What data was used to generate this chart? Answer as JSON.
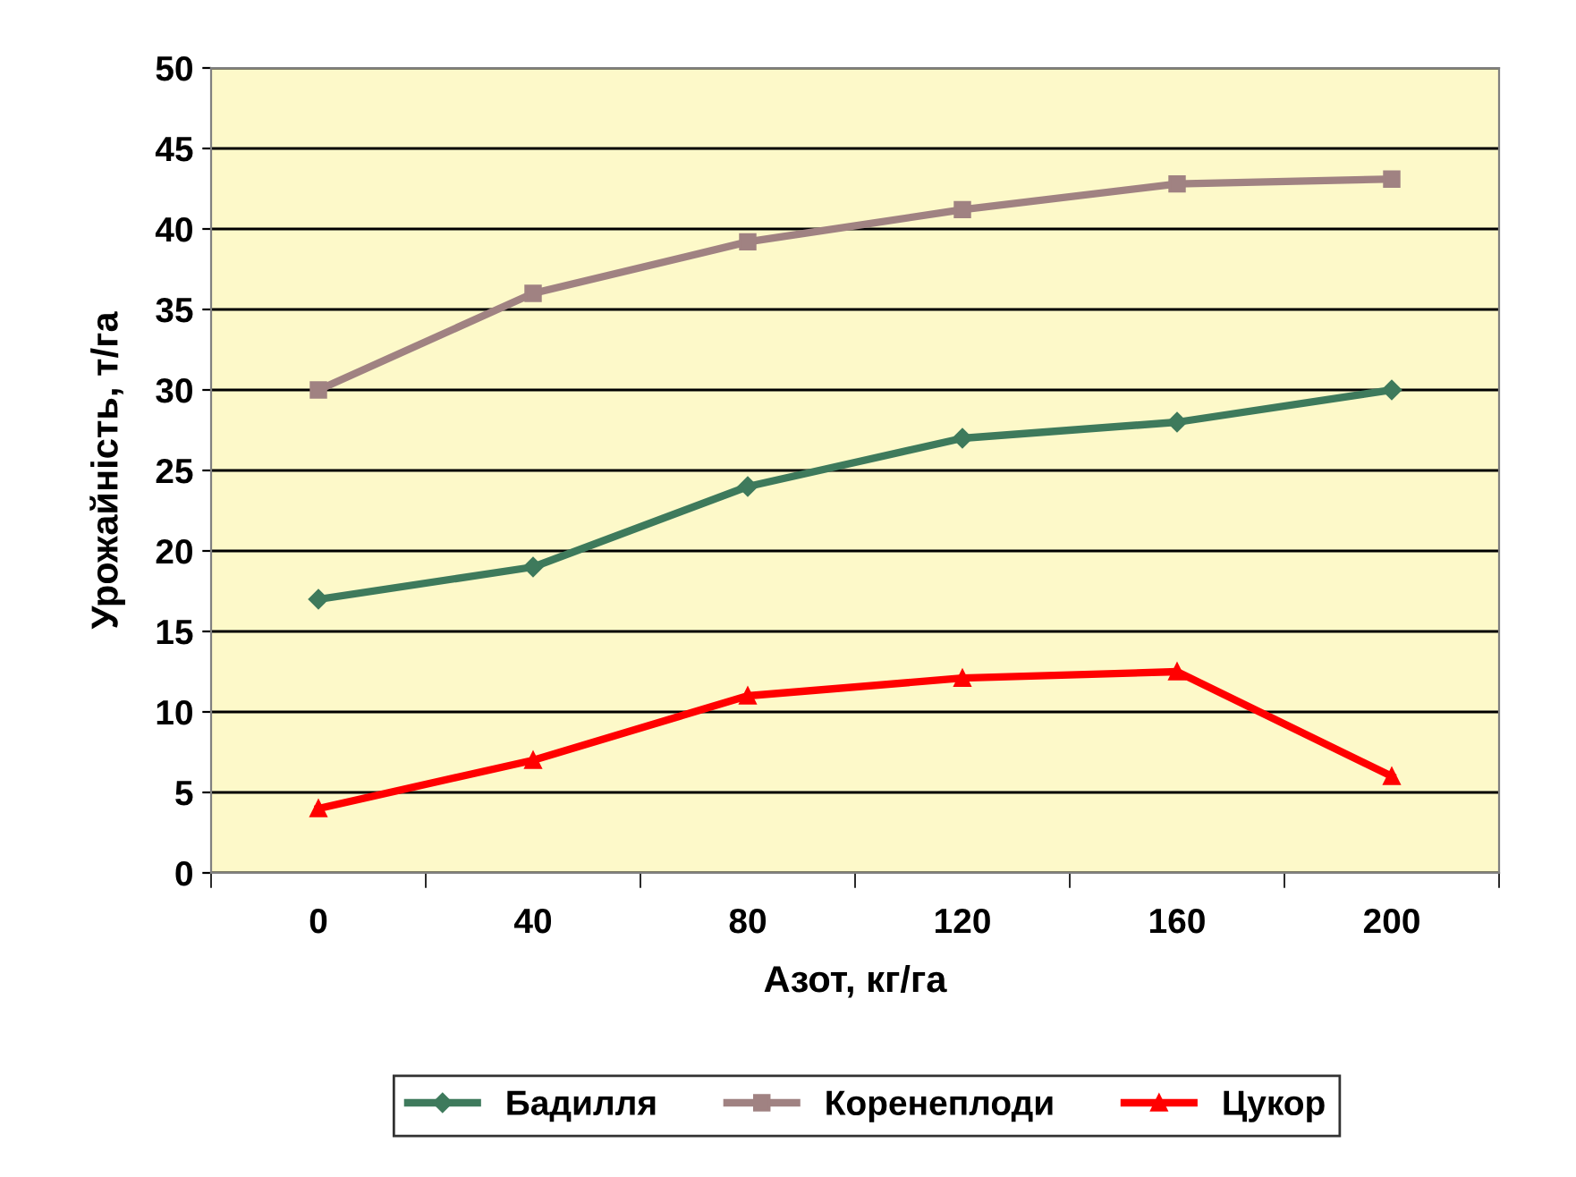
{
  "chart_data": {
    "type": "line",
    "xlabel": "Азот, кг/га",
    "ylabel": "Урожайність, т/га",
    "categories": [
      "0",
      "40",
      "80",
      "120",
      "160",
      "200"
    ],
    "series": [
      {
        "name": "Бадилля",
        "color": "#3e7a5c",
        "marker": "diamond",
        "values": [
          17,
          19,
          24,
          27,
          28,
          30
        ]
      },
      {
        "name": "Коренеплоди",
        "color": "#a08282",
        "marker": "square",
        "values": [
          30,
          36,
          39.2,
          41.2,
          42.8,
          43.1
        ]
      },
      {
        "name": "Цукор",
        "color": "#ff0000",
        "marker": "triangle",
        "values": [
          4,
          7,
          11,
          12.1,
          12.5,
          6
        ]
      }
    ],
    "ylim": [
      0,
      50
    ],
    "yticks": [
      0,
      5,
      10,
      15,
      20,
      25,
      30,
      35,
      40,
      45,
      50
    ],
    "grid": "y",
    "legend": "bottom",
    "line_style": "solid"
  }
}
